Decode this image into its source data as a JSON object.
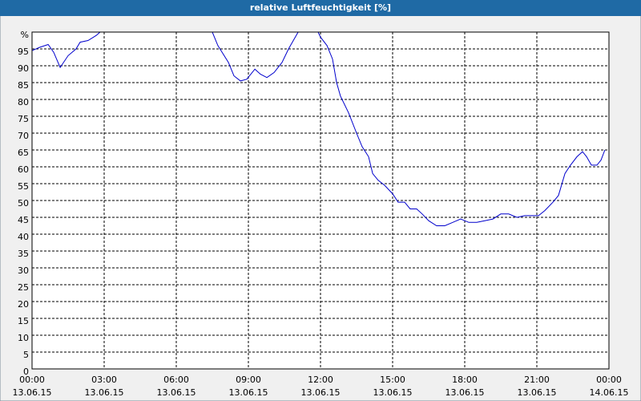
{
  "chart_data": {
    "type": "line",
    "title": "relative Luftfeuchtigkeit [%]",
    "x": [
      0,
      0.33,
      0.67,
      0.9,
      1.17,
      1.5,
      1.83,
      2.0,
      2.33,
      2.67,
      2.83,
      7.5,
      7.73,
      8.17,
      8.4,
      8.67,
      8.93,
      9.27,
      9.5,
      9.77,
      10.07,
      10.4,
      10.67,
      11.07,
      11.9,
      12.0,
      12.27,
      12.5,
      12.67,
      12.83,
      13.17,
      13.5,
      13.73,
      14.0,
      14.17,
      14.4,
      14.67,
      15.0,
      15.23,
      15.5,
      15.73,
      16.0,
      16.23,
      16.5,
      16.83,
      17.17,
      17.5,
      17.83,
      18.17,
      18.5,
      18.83,
      19.17,
      19.5,
      19.83,
      20.17,
      20.5,
      20.83,
      21.07,
      21.33,
      21.67,
      21.9,
      22.17,
      22.4,
      22.67,
      22.9,
      23.07,
      23.27,
      23.5,
      23.67,
      23.83
    ],
    "series": [
      {
        "name": "relative Luftfeuchtigkeit",
        "color": "#0000cc",
        "values": [
          94.5,
          95.5,
          96.3,
          94,
          89.5,
          93,
          95,
          97,
          97.5,
          99,
          100,
          100,
          96,
          91,
          87,
          85.5,
          86,
          89,
          87.5,
          86.5,
          88,
          91,
          95,
          100,
          100,
          98.5,
          96,
          92,
          85,
          81,
          76,
          70,
          66,
          63,
          58,
          56,
          54.5,
          52,
          49.5,
          49.5,
          47.5,
          47.5,
          46,
          44,
          42.5,
          42.5,
          43.5,
          44.5,
          43.5,
          43.5,
          44,
          44.5,
          46,
          46,
          45,
          45.5,
          45.5,
          45.5,
          47,
          49.5,
          51.5,
          58,
          60.5,
          63,
          64.5,
          63,
          60.5,
          60.5,
          62,
          65
        ]
      }
    ],
    "xlim": [
      0,
      24
    ],
    "xticks": [
      {
        "value": 0,
        "label": "00:00"
      },
      {
        "value": 3,
        "label": "03:00"
      },
      {
        "value": 6,
        "label": "06:00"
      },
      {
        "value": 9,
        "label": "09:00"
      },
      {
        "value": 12,
        "label": "12:00"
      },
      {
        "value": 15,
        "label": "15:00"
      },
      {
        "value": 18,
        "label": "18:00"
      },
      {
        "value": 21,
        "label": "21:00"
      },
      {
        "value": 24,
        "label": "00:00"
      }
    ],
    "xtick_dates": [
      "13.06.15",
      "13.06.15",
      "13.06.15",
      "13.06.15",
      "13.06.15",
      "13.06.15",
      "13.06.15",
      "13.06.15",
      "14.06.15"
    ],
    "ylim": [
      0,
      100
    ],
    "yticks": [
      0,
      5,
      10,
      15,
      20,
      25,
      30,
      35,
      40,
      45,
      50,
      55,
      60,
      65,
      70,
      75,
      80,
      85,
      90,
      95,
      {
        "value": 100,
        "label": "%"
      }
    ],
    "grid": true
  }
}
